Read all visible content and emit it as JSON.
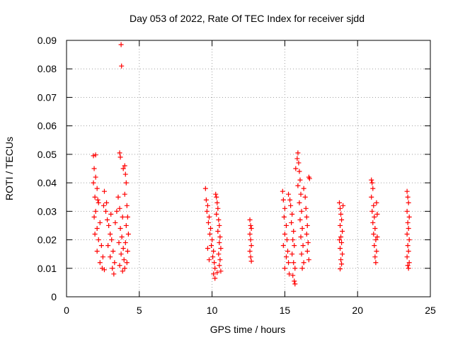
{
  "chart_data": {
    "type": "scatter",
    "title": "Day 053 of 2022, Rate Of TEC Index for receiver sjdd",
    "xlabel": "GPS time / hours",
    "ylabel": "ROTI / TECUs",
    "xlim": [
      0,
      25
    ],
    "ylim": [
      0,
      0.09
    ],
    "xticks": [
      0,
      5,
      10,
      15,
      20,
      25
    ],
    "yticks": [
      0,
      0.01,
      0.02,
      0.03,
      0.04,
      0.05,
      0.06,
      0.07,
      0.08,
      0.09
    ],
    "xtick_labels": [
      "0",
      "5",
      "10",
      "15",
      "20",
      "25"
    ],
    "ytick_labels": [
      "0",
      "0.01",
      "0.02",
      "0.03",
      "0.04",
      "0.05",
      "0.06",
      "0.07",
      "0.08",
      "0.09"
    ],
    "grid": true,
    "marker": "+",
    "marker_color": "#ff0000",
    "series": [
      {
        "name": "ROTI",
        "points": [
          [
            1.85,
            0.0495
          ],
          [
            2.0,
            0.0498
          ],
          [
            1.9,
            0.045
          ],
          [
            2.0,
            0.042
          ],
          [
            1.85,
            0.04
          ],
          [
            2.1,
            0.038
          ],
          [
            1.95,
            0.035
          ],
          [
            2.2,
            0.033
          ],
          [
            2.0,
            0.03
          ],
          [
            1.9,
            0.028
          ],
          [
            2.3,
            0.026
          ],
          [
            2.1,
            0.024
          ],
          [
            1.95,
            0.022
          ],
          [
            2.2,
            0.02
          ],
          [
            2.4,
            0.018
          ],
          [
            2.1,
            0.016
          ],
          [
            2.5,
            0.014
          ],
          [
            2.3,
            0.012
          ],
          [
            2.45,
            0.01
          ],
          [
            2.6,
            0.0095
          ],
          [
            2.6,
            0.037
          ],
          [
            2.7,
            0.03
          ],
          [
            2.8,
            0.027
          ],
          [
            2.9,
            0.025
          ],
          [
            3.0,
            0.022
          ],
          [
            3.1,
            0.02
          ],
          [
            2.85,
            0.018
          ],
          [
            3.2,
            0.016
          ],
          [
            3.0,
            0.014
          ],
          [
            3.3,
            0.012
          ],
          [
            3.15,
            0.01
          ],
          [
            3.25,
            0.008
          ],
          [
            2.75,
            0.033
          ],
          [
            3.05,
            0.029
          ],
          [
            3.35,
            0.026
          ],
          [
            3.55,
            0.035
          ],
          [
            3.65,
            0.031
          ],
          [
            3.7,
            0.024
          ],
          [
            3.8,
            0.021
          ],
          [
            3.6,
            0.019
          ],
          [
            3.9,
            0.017
          ],
          [
            3.75,
            0.015
          ],
          [
            3.95,
            0.013
          ],
          [
            3.65,
            0.011
          ],
          [
            3.85,
            0.009
          ],
          [
            3.65,
            0.0505
          ],
          [
            3.7,
            0.049
          ],
          [
            3.75,
            0.0885
          ],
          [
            3.78,
            0.081
          ],
          [
            3.9,
            0.045
          ],
          [
            4.0,
            0.046
          ],
          [
            4.05,
            0.043
          ],
          [
            4.1,
            0.04
          ],
          [
            4.0,
            0.036
          ],
          [
            4.15,
            0.032
          ],
          [
            4.2,
            0.028
          ],
          [
            4.1,
            0.025
          ],
          [
            4.25,
            0.022
          ],
          [
            4.05,
            0.019
          ],
          [
            4.2,
            0.016
          ],
          [
            4.15,
            0.012
          ],
          [
            4.0,
            0.01
          ],
          [
            2.15,
            0.034
          ],
          [
            2.55,
            0.032
          ],
          [
            3.45,
            0.03
          ],
          [
            3.85,
            0.028
          ],
          [
            9.55,
            0.038
          ],
          [
            9.6,
            0.034
          ],
          [
            9.7,
            0.032
          ],
          [
            9.65,
            0.03
          ],
          [
            9.8,
            0.028
          ],
          [
            9.75,
            0.026
          ],
          [
            9.9,
            0.024
          ],
          [
            9.85,
            0.022
          ],
          [
            10.0,
            0.02
          ],
          [
            9.95,
            0.018
          ],
          [
            10.1,
            0.016
          ],
          [
            10.05,
            0.014
          ],
          [
            10.15,
            0.012
          ],
          [
            10.2,
            0.01
          ],
          [
            10.1,
            0.008
          ],
          [
            10.2,
            0.0065
          ],
          [
            9.7,
            0.017
          ],
          [
            9.8,
            0.013
          ],
          [
            10.25,
            0.036
          ],
          [
            10.3,
            0.035
          ],
          [
            10.35,
            0.033
          ],
          [
            10.4,
            0.031
          ],
          [
            10.3,
            0.029
          ],
          [
            10.45,
            0.027
          ],
          [
            10.5,
            0.025
          ],
          [
            10.4,
            0.023
          ],
          [
            10.55,
            0.021
          ],
          [
            10.5,
            0.019
          ],
          [
            10.6,
            0.017
          ],
          [
            10.45,
            0.015
          ],
          [
            10.55,
            0.013
          ],
          [
            10.5,
            0.011
          ],
          [
            10.6,
            0.009
          ],
          [
            10.35,
            0.0085
          ],
          [
            12.6,
            0.027
          ],
          [
            12.65,
            0.025
          ],
          [
            12.7,
            0.024
          ],
          [
            12.6,
            0.022
          ],
          [
            12.65,
            0.02
          ],
          [
            12.7,
            0.018
          ],
          [
            12.6,
            0.016
          ],
          [
            12.65,
            0.014
          ],
          [
            12.7,
            0.0125
          ],
          [
            14.85,
            0.037
          ],
          [
            14.9,
            0.034
          ],
          [
            15.0,
            0.031
          ],
          [
            14.95,
            0.028
          ],
          [
            15.1,
            0.025
          ],
          [
            15.0,
            0.022
          ],
          [
            15.15,
            0.02
          ],
          [
            14.9,
            0.018
          ],
          [
            15.2,
            0.016
          ],
          [
            15.1,
            0.014
          ],
          [
            15.25,
            0.012
          ],
          [
            15.0,
            0.01
          ],
          [
            15.3,
            0.008
          ],
          [
            15.25,
            0.036
          ],
          [
            15.35,
            0.034
          ],
          [
            15.4,
            0.032
          ],
          [
            15.5,
            0.029
          ],
          [
            15.45,
            0.026
          ],
          [
            15.6,
            0.023
          ],
          [
            15.55,
            0.02
          ],
          [
            15.65,
            0.018
          ],
          [
            15.5,
            0.015
          ],
          [
            15.6,
            0.012
          ],
          [
            15.7,
            0.01
          ],
          [
            15.55,
            0.0075
          ],
          [
            15.65,
            0.0055
          ],
          [
            15.7,
            0.0045
          ],
          [
            15.75,
            0.045
          ],
          [
            15.85,
            0.0485
          ],
          [
            15.9,
            0.0505
          ],
          [
            15.95,
            0.047
          ],
          [
            16.0,
            0.044
          ],
          [
            16.05,
            0.041
          ],
          [
            15.9,
            0.039
          ],
          [
            16.1,
            0.036
          ],
          [
            16.0,
            0.033
          ],
          [
            16.15,
            0.03
          ],
          [
            16.05,
            0.027
          ],
          [
            16.2,
            0.024
          ],
          [
            16.1,
            0.021
          ],
          [
            16.25,
            0.018
          ],
          [
            16.15,
            0.015
          ],
          [
            16.3,
            0.012
          ],
          [
            16.2,
            0.01
          ],
          [
            16.3,
            0.038
          ],
          [
            16.4,
            0.035
          ],
          [
            16.45,
            0.031
          ],
          [
            16.5,
            0.028
          ],
          [
            16.55,
            0.025
          ],
          [
            16.5,
            0.022
          ],
          [
            16.6,
            0.019
          ],
          [
            16.55,
            0.016
          ],
          [
            16.65,
            0.013
          ],
          [
            16.65,
            0.042
          ],
          [
            16.7,
            0.0415
          ],
          [
            18.75,
            0.033
          ],
          [
            18.8,
            0.031
          ],
          [
            18.85,
            0.029
          ],
          [
            18.9,
            0.027
          ],
          [
            18.8,
            0.025
          ],
          [
            18.95,
            0.023
          ],
          [
            18.85,
            0.021
          ],
          [
            18.9,
            0.019
          ],
          [
            18.8,
            0.017
          ],
          [
            18.95,
            0.015
          ],
          [
            18.85,
            0.013
          ],
          [
            18.9,
            0.0115
          ],
          [
            18.8,
            0.0098
          ],
          [
            19.0,
            0.032
          ],
          [
            18.75,
            0.02
          ],
          [
            20.95,
            0.041
          ],
          [
            21.0,
            0.04
          ],
          [
            21.05,
            0.038
          ],
          [
            20.95,
            0.035
          ],
          [
            21.1,
            0.032
          ],
          [
            21.0,
            0.03
          ],
          [
            21.15,
            0.028
          ],
          [
            21.05,
            0.026
          ],
          [
            21.2,
            0.024
          ],
          [
            21.1,
            0.022
          ],
          [
            21.25,
            0.02
          ],
          [
            21.15,
            0.018
          ],
          [
            21.3,
            0.016
          ],
          [
            21.2,
            0.014
          ],
          [
            21.25,
            0.012
          ],
          [
            21.3,
            0.033
          ],
          [
            21.35,
            0.029
          ],
          [
            21.35,
            0.021
          ],
          [
            23.4,
            0.037
          ],
          [
            23.45,
            0.035
          ],
          [
            23.5,
            0.033
          ],
          [
            23.4,
            0.03
          ],
          [
            23.55,
            0.028
          ],
          [
            23.45,
            0.026
          ],
          [
            23.5,
            0.024
          ],
          [
            23.4,
            0.022
          ],
          [
            23.55,
            0.02
          ],
          [
            23.45,
            0.018
          ],
          [
            23.5,
            0.016
          ],
          [
            23.4,
            0.014
          ],
          [
            23.55,
            0.012
          ],
          [
            23.45,
            0.011
          ],
          [
            23.5,
            0.01
          ]
        ]
      }
    ]
  }
}
